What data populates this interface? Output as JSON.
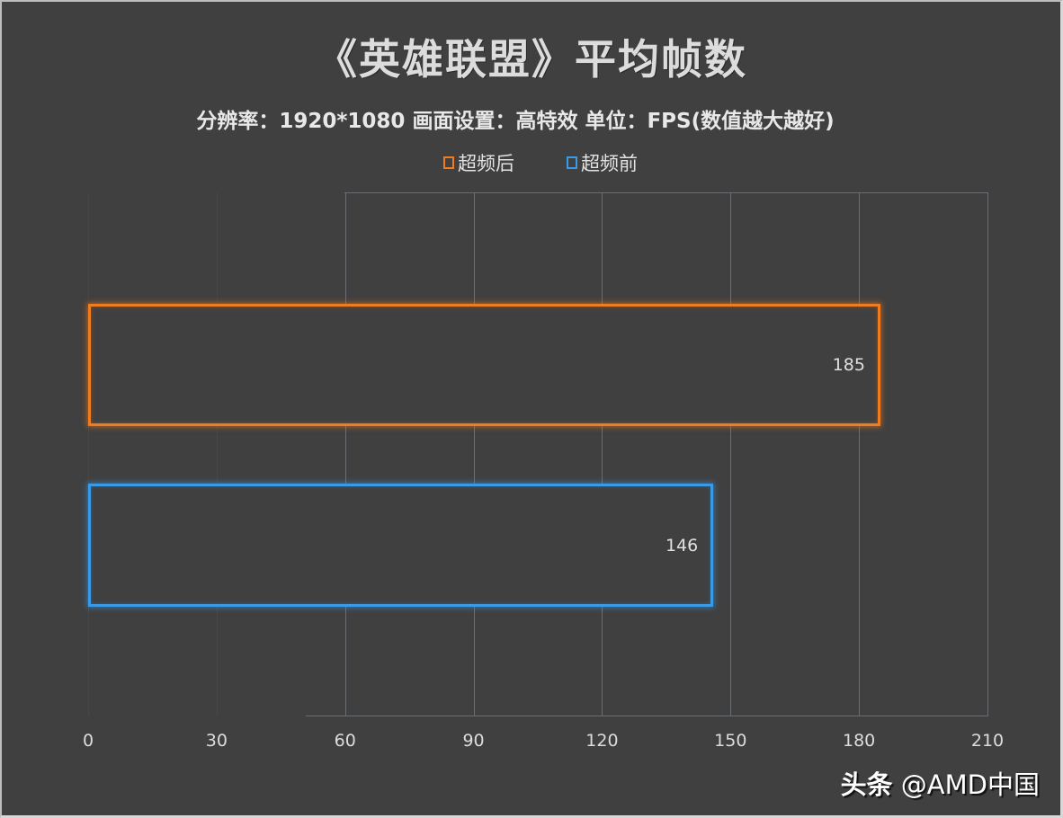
{
  "title": "《英雄联盟》平均帧数",
  "subtitle": "分辨率：1920*1080 画面设置：高特效 单位：FPS(数值越大越好)",
  "legend": [
    {
      "label": "超频后",
      "color": "#f07c1e"
    },
    {
      "label": "超频前",
      "color": "#3a9ae8"
    }
  ],
  "watermark": {
    "brand": "头条",
    "handle": "@AMD中国"
  },
  "chart_data": {
    "type": "bar",
    "orientation": "horizontal",
    "title": "《英雄联盟》平均帧数",
    "subtitle": "分辨率：1920*1080 画面设置：高特效 单位：FPS(数值越大越好)",
    "categories": [
      ""
    ],
    "series": [
      {
        "name": "超频后",
        "values": [
          185
        ],
        "color": "#f07c1e"
      },
      {
        "name": "超频前",
        "values": [
          146
        ],
        "color": "#3a9ae8"
      }
    ],
    "xlabel": "",
    "ylabel": "",
    "xlim": [
      0,
      210
    ],
    "x_ticks": [
      "0",
      "30",
      "60",
      "90",
      "120",
      "150",
      "180",
      "210"
    ],
    "grid": true,
    "legend_position": "top",
    "data_labels": [
      "185",
      "146"
    ],
    "background": "#404040"
  }
}
